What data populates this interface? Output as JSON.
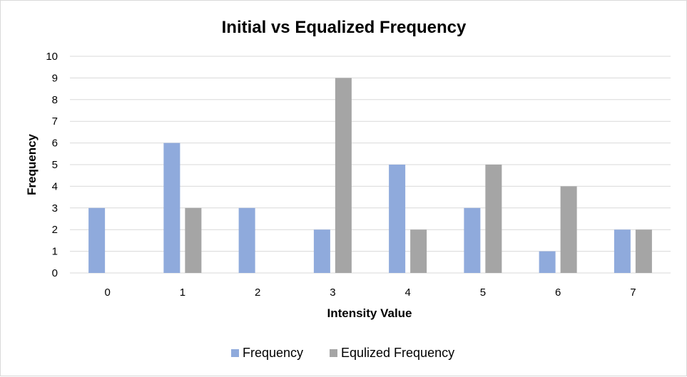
{
  "chart_data": {
    "type": "bar",
    "title": "Initial vs Equalized Frequency",
    "xlabel": "Intensity Value",
    "ylabel": "Frequency",
    "categories": [
      "0",
      "1",
      "2",
      "3",
      "4",
      "5",
      "6",
      "7"
    ],
    "series": [
      {
        "name": "Frequency",
        "values": [
          3,
          6,
          3,
          2,
          5,
          3,
          1,
          2
        ],
        "color": "#8faadc"
      },
      {
        "name": "Equlized Frequency",
        "values": [
          0,
          3,
          0,
          9,
          2,
          5,
          4,
          2
        ],
        "color": "#a5a5a5"
      }
    ],
    "ylim": [
      0,
      10
    ],
    "yticks": [
      "0",
      "1",
      "2",
      "3",
      "4",
      "5",
      "6",
      "7",
      "8",
      "9",
      "10"
    ],
    "grid": true,
    "gridline_color": "#d9d9d9",
    "legend_position": "bottom"
  }
}
